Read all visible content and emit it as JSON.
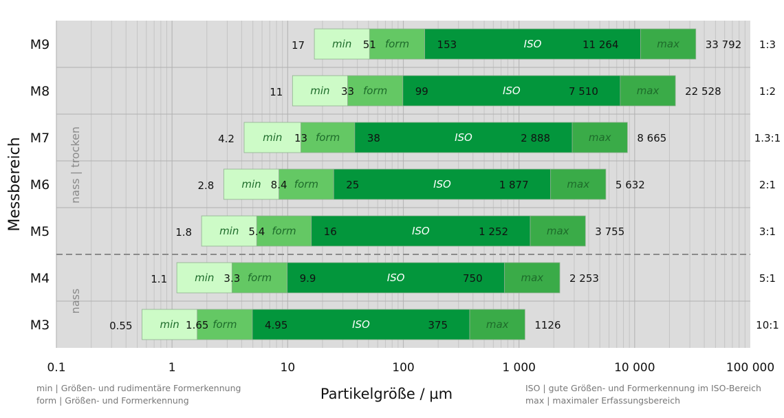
{
  "chart_data": {
    "type": "bar",
    "xscale": "log",
    "xlim": [
      0.1,
      100000
    ],
    "grid": true,
    "ylabel": "Messbereich",
    "xlabel": "Partikelgröße / µm",
    "xticks": [
      "0.1",
      "1",
      "10",
      "100",
      "1 000",
      "10 000",
      "100 000"
    ],
    "segments": [
      "min",
      "form",
      "ISO",
      "max"
    ],
    "segment_colors": [
      "#cdfbc7",
      "#64c864",
      "#03963c",
      "#3aab48"
    ],
    "segment_text_colors": [
      "#1d6b2a",
      "#1d6b2a",
      "#ffffff",
      "#1d6b2a"
    ],
    "rows": [
      {
        "name": "M9",
        "ratio": "1:3",
        "bounds": [
          17,
          51,
          153,
          11264,
          33792
        ],
        "labels": [
          "17",
          "51",
          "153",
          "11 264",
          "33 792"
        ]
      },
      {
        "name": "M8",
        "ratio": "1:2",
        "bounds": [
          11,
          33,
          99,
          7510,
          22528
        ],
        "labels": [
          "11",
          "33",
          "99",
          "7 510",
          "22 528"
        ]
      },
      {
        "name": "M7",
        "ratio": "1.3:1",
        "bounds": [
          4.2,
          13,
          38,
          2888,
          8665
        ],
        "labels": [
          "4.2",
          "13",
          "38",
          "2 888",
          "8 665"
        ]
      },
      {
        "name": "M6",
        "ratio": "2:1",
        "bounds": [
          2.8,
          8.4,
          25,
          1877,
          5632
        ],
        "labels": [
          "2.8",
          "8.4",
          "25",
          "1 877",
          "5 632"
        ]
      },
      {
        "name": "M5",
        "ratio": "3:1",
        "bounds": [
          1.8,
          5.4,
          16,
          1252,
          3755
        ],
        "labels": [
          "1.8",
          "5.4",
          "16",
          "1 252",
          "3 755"
        ]
      },
      {
        "name": "M4",
        "ratio": "5:1",
        "bounds": [
          1.1,
          3.3,
          9.9,
          750,
          2253
        ],
        "labels": [
          "1.1",
          "3.3",
          "9.9",
          "750",
          "2 253"
        ]
      },
      {
        "name": "M3",
        "ratio": "10:1",
        "bounds": [
          0.55,
          1.65,
          4.95,
          375,
          1126
        ],
        "labels": [
          "0.55",
          "1.65",
          "4.95",
          "375",
          "1126"
        ]
      }
    ],
    "groups": [
      {
        "label": "nass | trocken",
        "rows": [
          "M9",
          "M8",
          "M7",
          "M6",
          "M5"
        ]
      },
      {
        "label": "nass",
        "rows": [
          "M4",
          "M3"
        ]
      }
    ]
  },
  "legend_left": [
    "min | Größen- und rudimentäre Formerkennung",
    "form | Größen- und Formerkennung"
  ],
  "legend_right": [
    "ISO | gute Größen- und Formerkennung im ISO-Bereich",
    "max | maximaler Erfassungsbereich"
  ]
}
